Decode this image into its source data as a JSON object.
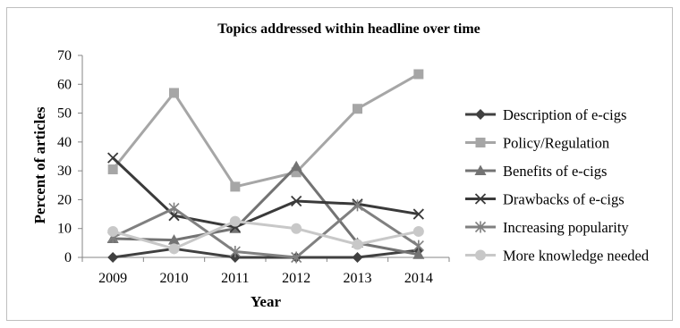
{
  "chart_data": {
    "type": "line",
    "title": "Topics addressed within headline over time",
    "xlabel": "Year",
    "ylabel": "Percent of articles",
    "categories": [
      "2009",
      "2010",
      "2011",
      "2012",
      "2013",
      "2014"
    ],
    "ylim": [
      0,
      70
    ],
    "yticks": [
      0,
      10,
      20,
      30,
      40,
      50,
      60,
      70
    ],
    "grid": false,
    "legend_position": "right",
    "series": [
      {
        "name": "Description of e-cigs",
        "values": [
          0,
          3,
          0,
          0,
          0,
          2.5
        ],
        "color": "#404040",
        "marker": "diamond"
      },
      {
        "name": "Policy/Regulation",
        "values": [
          30.5,
          57,
          24.5,
          29.5,
          51.5,
          63.5
        ],
        "color": "#a6a6a6",
        "marker": "square"
      },
      {
        "name": "Benefits of e-cigs",
        "values": [
          6.5,
          6,
          10,
          31.5,
          5,
          1
        ],
        "color": "#737373",
        "marker": "triangle"
      },
      {
        "name": "Drawbacks of e-cigs",
        "values": [
          34.5,
          14.5,
          10.5,
          19.5,
          18.5,
          15
        ],
        "color": "#3a3a3a",
        "marker": "x"
      },
      {
        "name": "Increasing popularity",
        "values": [
          7,
          17,
          2,
          0,
          18,
          4
        ],
        "color": "#808080",
        "marker": "star"
      },
      {
        "name": "More knowledge needed",
        "values": [
          9,
          3,
          12.5,
          10,
          4.5,
          9
        ],
        "color": "#c8c8c8",
        "marker": "circle"
      }
    ]
  }
}
